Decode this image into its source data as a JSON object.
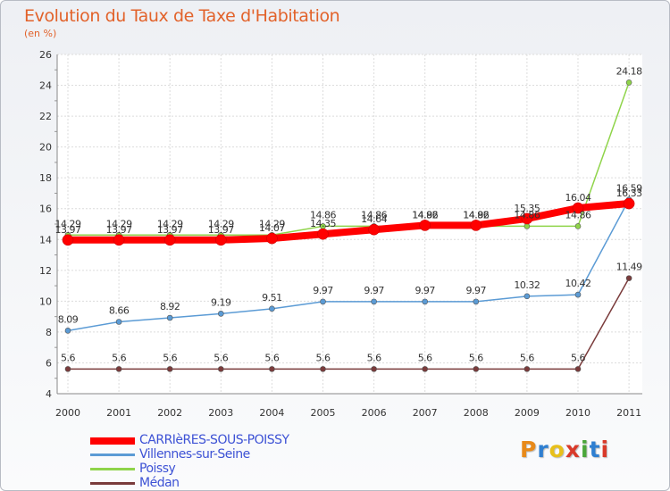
{
  "header": {
    "title": "Evolution du Taux de Taxe d'Habitation",
    "subtitle": "(en %)"
  },
  "logo": {
    "text": "Proxiti",
    "colors": [
      "#e88a1a",
      "#2f7fd1",
      "#e8c01a",
      "#d93a2a",
      "#4aa63a",
      "#2f7fd1",
      "#d93a2a"
    ]
  },
  "chart_data": {
    "type": "line",
    "x": [
      "2000",
      "2001",
      "2002",
      "2003",
      "2004",
      "2005",
      "2006",
      "2007",
      "2008",
      "2009",
      "2010",
      "2011"
    ],
    "ylim": [
      4,
      26
    ],
    "yticks": [
      "4",
      "6",
      "8",
      "10",
      "12",
      "14",
      "16",
      "18",
      "20",
      "22",
      "24",
      "26"
    ],
    "grid": true,
    "legend": "bottom-left",
    "series": [
      {
        "name": "CARRIèRES-SOUS-POISSY",
        "color": "#ff0000",
        "values": [
          13.97,
          13.97,
          13.97,
          13.97,
          14.07,
          14.35,
          14.64,
          14.92,
          14.92,
          15.35,
          16.04,
          16.33
        ],
        "labels": [
          "13.97",
          "13.97",
          "13.97",
          "13.97",
          "14.07",
          "14.35",
          "14.64",
          "14.92",
          "14.92",
          "15.35",
          "16.04",
          "16.33"
        ]
      },
      {
        "name": "Villennes-sur-Seine",
        "color": "#5b9bd5",
        "values": [
          8.09,
          8.66,
          8.92,
          9.19,
          9.51,
          9.97,
          9.97,
          9.97,
          9.97,
          10.32,
          10.42,
          16.59
        ],
        "labels": [
          "8.09",
          "8.66",
          "8.92",
          "9.19",
          "9.51",
          "9.97",
          "9.97",
          "9.97",
          "9.97",
          "10.32",
          "10.42",
          "16.59"
        ]
      },
      {
        "name": "Poissy",
        "color": "#8fd44a",
        "values": [
          14.29,
          14.29,
          14.29,
          14.29,
          14.29,
          14.86,
          14.86,
          14.86,
          14.86,
          14.86,
          14.86,
          24.18
        ],
        "labels": [
          "14.29",
          "14.29",
          "14.29",
          "14.29",
          "14.29",
          "14.86",
          "14.86",
          "14.86",
          "14.86",
          "14.86",
          "14.86",
          "24.18"
        ]
      },
      {
        "name": "Médan",
        "color": "#7a3b3b",
        "values": [
          5.6,
          5.6,
          5.6,
          5.6,
          5.6,
          5.6,
          5.6,
          5.6,
          5.6,
          5.6,
          5.6,
          11.49
        ],
        "labels": [
          "5.6",
          "5.6",
          "5.6",
          "5.6",
          "5.6",
          "5.6",
          "5.6",
          "5.6",
          "5.6",
          "5.6",
          "5.6",
          "11.49"
        ]
      }
    ]
  }
}
